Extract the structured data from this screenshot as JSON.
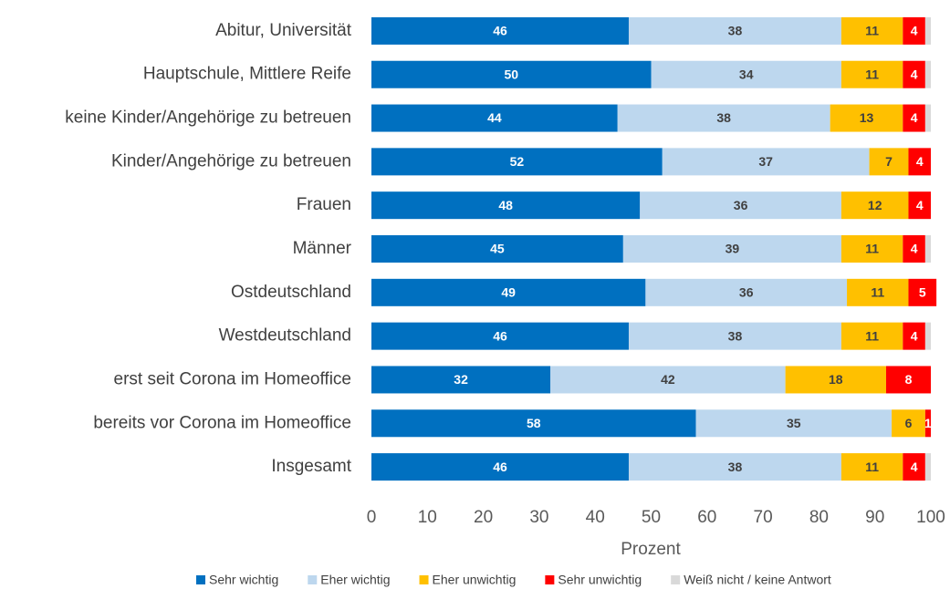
{
  "chart_data": {
    "type": "stacked_barh",
    "categories": [
      "Abitur, Universität",
      "Hauptschule, Mittlere Reife",
      "keine Kinder/Angehörige zu betreuen",
      "Kinder/Angehörige zu betreuen",
      "Frauen",
      "Männer",
      "Ostdeutschland",
      "Westdeutschland",
      "erst seit Corona im Homeoffice",
      "bereits vor Corona im Homeoffice",
      "Insgesamt"
    ],
    "series": [
      {
        "name": "Sehr wichtig",
        "color": "#0070c0",
        "data_labels": true,
        "values": [
          46,
          50,
          44,
          52,
          48,
          45,
          49,
          46,
          32,
          58,
          46
        ]
      },
      {
        "name": "Eher wichtig",
        "color": "#bdd7ee",
        "data_labels": true,
        "values": [
          38,
          34,
          38,
          37,
          36,
          39,
          36,
          38,
          42,
          35,
          38
        ]
      },
      {
        "name": "Eher unwichtig",
        "color": "#ffc000",
        "data_labels": true,
        "values": [
          11,
          11,
          13,
          7,
          12,
          11,
          11,
          11,
          18,
          6,
          11
        ]
      },
      {
        "name": "Sehr unwichtig",
        "color": "#ff0000",
        "data_labels": true,
        "values": [
          4,
          4,
          4,
          4,
          4,
          4,
          5,
          4,
          8,
          1,
          4
        ]
      },
      {
        "name": "Weiß nicht / keine Antwort",
        "color": "#d9d9d9",
        "data_labels": false,
        "values": [
          1,
          1,
          1,
          0,
          0,
          1,
          0,
          1,
          0,
          0,
          1
        ]
      }
    ],
    "xlim": [
      0,
      100
    ],
    "xticks": [
      0,
      10,
      20,
      30,
      40,
      50,
      60,
      70,
      80,
      90,
      100
    ],
    "xlabel": "Prozent",
    "grid": false,
    "legend": "bottom"
  }
}
